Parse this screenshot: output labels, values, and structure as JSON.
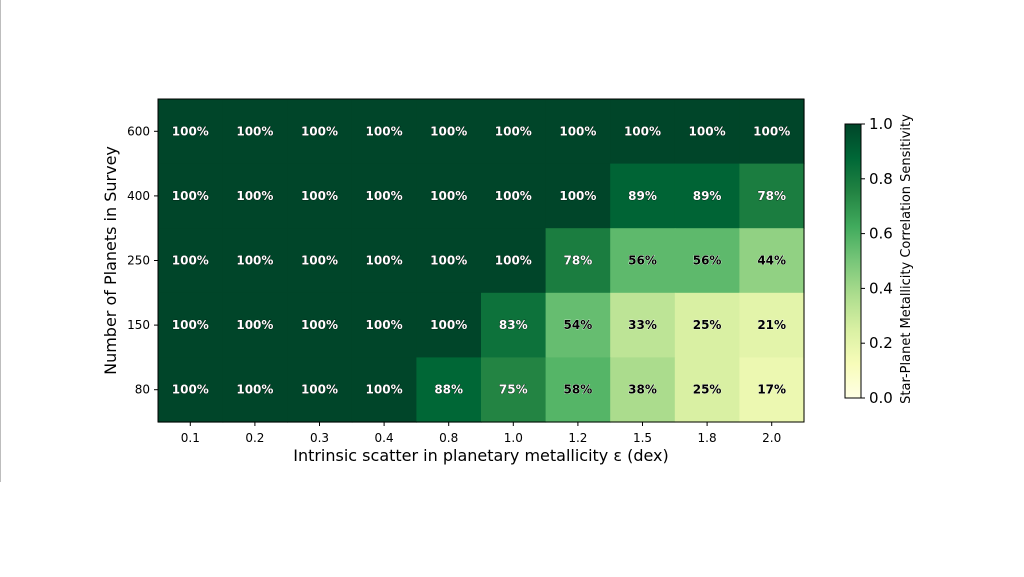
{
  "chart_data": {
    "type": "heatmap",
    "title": "",
    "xlabel": "Intrinsic scatter in planetary metallicity ε (dex)",
    "ylabel": "Number of Planets in Survey",
    "x_categories": [
      "0.1",
      "0.2",
      "0.3",
      "0.4",
      "0.8",
      "1.0",
      "1.2",
      "1.5",
      "1.8",
      "2.0"
    ],
    "y_categories": [
      "600",
      "400",
      "250",
      "150",
      "80"
    ],
    "values": [
      [
        1.0,
        1.0,
        1.0,
        1.0,
        1.0,
        1.0,
        1.0,
        1.0,
        1.0,
        1.0
      ],
      [
        1.0,
        1.0,
        1.0,
        1.0,
        1.0,
        1.0,
        1.0,
        0.89,
        0.89,
        0.78
      ],
      [
        1.0,
        1.0,
        1.0,
        1.0,
        1.0,
        1.0,
        0.78,
        0.56,
        0.56,
        0.44
      ],
      [
        1.0,
        1.0,
        1.0,
        1.0,
        1.0,
        0.83,
        0.54,
        0.33,
        0.25,
        0.21
      ],
      [
        1.0,
        1.0,
        1.0,
        1.0,
        0.88,
        0.75,
        0.58,
        0.38,
        0.25,
        0.17
      ]
    ],
    "cell_labels": [
      [
        "100%",
        "100%",
        "100%",
        "100%",
        "100%",
        "100%",
        "100%",
        "100%",
        "100%",
        "100%"
      ],
      [
        "100%",
        "100%",
        "100%",
        "100%",
        "100%",
        "100%",
        "100%",
        "89%",
        "89%",
        "78%"
      ],
      [
        "100%",
        "100%",
        "100%",
        "100%",
        "100%",
        "100%",
        "78%",
        "56%",
        "56%",
        "44%"
      ],
      [
        "100%",
        "100%",
        "100%",
        "100%",
        "100%",
        "83%",
        "54%",
        "33%",
        "25%",
        "21%"
      ],
      [
        "100%",
        "100%",
        "100%",
        "100%",
        "88%",
        "75%",
        "58%",
        "38%",
        "25%",
        "17%"
      ]
    ],
    "colorbar": {
      "label": "Star-Planet Metallicity Correlation Sensitivity",
      "range": [
        0.0,
        1.0
      ],
      "ticks": [
        "0.0",
        "0.2",
        "0.4",
        "0.6",
        "0.8",
        "1.0"
      ],
      "colormap": "YlGn",
      "colormap_stops": [
        "#ffffe5",
        "#f7fcb9",
        "#d9f0a3",
        "#addd8e",
        "#78c679",
        "#41ab5d",
        "#238443",
        "#006837",
        "#004529"
      ]
    },
    "grid": false
  }
}
